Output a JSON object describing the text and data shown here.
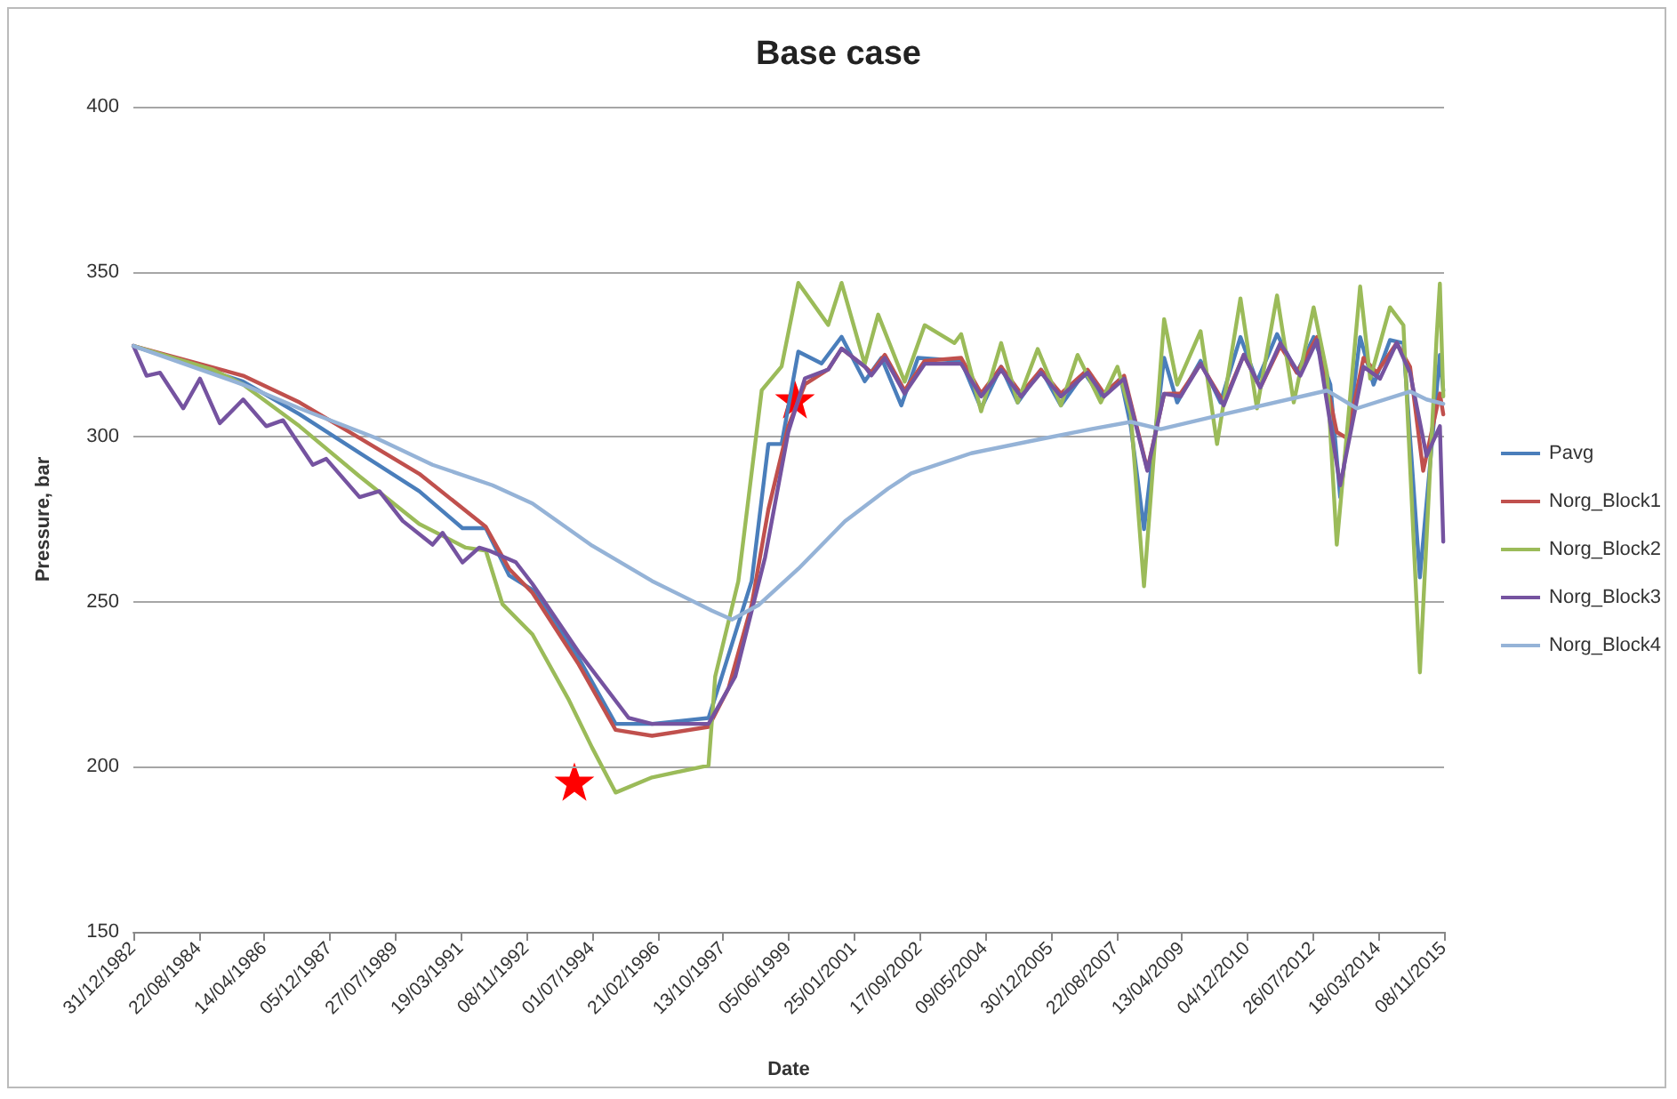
{
  "chart_data": {
    "type": "line",
    "title": "Base case",
    "xlabel": "Date",
    "ylabel": "Pressure, bar",
    "ylim": [
      150,
      400
    ],
    "yticks": [
      150,
      200,
      250,
      300,
      350,
      400
    ],
    "xlim": [
      "1982-12-31",
      "2015-11-08"
    ],
    "xticks": [
      {
        "value": "1982-12-31",
        "label": "31/12/1982"
      },
      {
        "value": "1984-08-22",
        "label": "22/08/1984"
      },
      {
        "value": "1986-04-14",
        "label": "14/04/1986"
      },
      {
        "value": "1987-12-05",
        "label": "05/12/1987"
      },
      {
        "value": "1989-07-27",
        "label": "27/07/1989"
      },
      {
        "value": "1991-03-19",
        "label": "19/03/1991"
      },
      {
        "value": "1992-11-08",
        "label": "08/11/1992"
      },
      {
        "value": "1994-07-01",
        "label": "01/07/1994"
      },
      {
        "value": "1996-02-21",
        "label": "21/02/1996"
      },
      {
        "value": "1997-10-13",
        "label": "13/10/1997"
      },
      {
        "value": "1999-06-05",
        "label": "05/06/1999"
      },
      {
        "value": "2001-01-25",
        "label": "25/01/2001"
      },
      {
        "value": "2002-09-17",
        "label": "17/09/2002"
      },
      {
        "value": "2004-05-09",
        "label": "09/05/2004"
      },
      {
        "value": "2005-12-30",
        "label": "30/12/2005"
      },
      {
        "value": "2007-08-22",
        "label": "22/08/2007"
      },
      {
        "value": "2009-04-13",
        "label": "13/04/2009"
      },
      {
        "value": "2010-12-04",
        "label": "04/12/2010"
      },
      {
        "value": "2012-07-26",
        "label": "26/07/2012"
      },
      {
        "value": "2014-03-18",
        "label": "18/03/2014"
      },
      {
        "value": "2015-11-08",
        "label": "08/11/2015"
      }
    ],
    "grid": "y",
    "legend": "right",
    "marker": "none",
    "line_style": "solid",
    "series": [
      {
        "name": "Pavg",
        "color": "#4a7ebb",
        "x": [
          "1983-01",
          "1985-10",
          "1987-03",
          "1988-09",
          "1990-03",
          "1991-04",
          "1991-11",
          "1992-06",
          "1993-01",
          "1994-03",
          "1995-02",
          "1996-01",
          "1997-06",
          "1997-10",
          "1998-07",
          "1998-12",
          "1999-04",
          "1999-09",
          "2000-04",
          "2000-10",
          "2001-05",
          "2001-10",
          "2002-04",
          "2002-09",
          "2003-10",
          "2004-04",
          "2004-10",
          "2005-03",
          "2005-10",
          "2006-04",
          "2006-11",
          "2007-04",
          "2007-10",
          "2008-01",
          "2008-05",
          "2008-11",
          "2009-03",
          "2009-10",
          "2010-04",
          "2010-10",
          "2011-03",
          "2011-09",
          "2012-03",
          "2012-08",
          "2013-01",
          "2013-04",
          "2013-10",
          "2014-02",
          "2014-07",
          "2014-11",
          "2015-04",
          "2015-10",
          "2015-11"
        ],
        "values": [
          327.5,
          316.7,
          306.8,
          295.1,
          283.5,
          272.3,
          272.3,
          258,
          253.6,
          232.9,
          213,
          213,
          214.8,
          227.4,
          256.3,
          297.8,
          297.8,
          325.8,
          322.2,
          330.3,
          316.8,
          323.9,
          309.5,
          323.9,
          323,
          308.6,
          321.2,
          310.4,
          320.3,
          309.5,
          319.4,
          312.2,
          317.6,
          303.2,
          272,
          323.9,
          310.4,
          323,
          310.4,
          330.2,
          316.7,
          331.1,
          319.4,
          330.2,
          315.8,
          281.7,
          330.2,
          315.8,
          329.3,
          328.4,
          257.4,
          324.8,
          314
        ]
      },
      {
        "name": "Norg_Block1",
        "color": "#c0504d",
        "x": [
          "1983-01",
          "1985-10",
          "1987-03",
          "1988-09",
          "1990-03",
          "1991-11",
          "1992-06",
          "1993-01",
          "1994-03",
          "1995-02",
          "1996-01",
          "1997-06",
          "1997-12",
          "1998-07",
          "1998-12",
          "1999-06",
          "1999-11",
          "2000-06",
          "2000-10",
          "2001-05",
          "2001-07",
          "2001-11",
          "2002-05",
          "2002-11",
          "2003-10",
          "2004-04",
          "2004-10",
          "2005-04",
          "2005-10",
          "2006-04",
          "2006-12",
          "2007-05",
          "2007-11",
          "2008-06",
          "2008-11",
          "2009-04",
          "2009-10",
          "2010-05",
          "2010-11",
          "2011-04",
          "2011-10",
          "2012-03",
          "2012-09",
          "2013-03",
          "2013-06",
          "2013-11",
          "2014-03",
          "2014-09",
          "2015-01",
          "2015-05",
          "2015-10",
          "2015-11"
        ],
        "values": [
          327.5,
          318.5,
          310.4,
          299.6,
          288.8,
          272.7,
          260,
          252.7,
          231,
          211.2,
          209.4,
          212.1,
          223.8,
          249.1,
          278,
          303.2,
          315.9,
          320.4,
          326.7,
          321.3,
          319.4,
          324.8,
          314,
          323,
          323.9,
          313.1,
          321.2,
          313.1,
          320.3,
          313.1,
          320.3,
          313.1,
          318.5,
          290,
          313,
          313.1,
          322.1,
          310.4,
          324.8,
          314.9,
          327.5,
          319.4,
          330.2,
          301.4,
          299.6,
          323.9,
          319.4,
          328.4,
          321.2,
          289.7,
          313.1,
          306.8
        ]
      },
      {
        "name": "Norg_Block2",
        "color": "#9bbb59",
        "x": [
          "1983-01",
          "1985-01",
          "1985-10",
          "1987-03",
          "1988-09",
          "1990-03",
          "1991-05",
          "1991-11",
          "1992-04",
          "1993-01",
          "1993-12",
          "1994-07",
          "1995-02",
          "1996-01",
          "1997-06",
          "1997-08",
          "1998-03",
          "1998-10",
          "1999-04",
          "1999-09",
          "2000-06",
          "2000-10",
          "2001-05",
          "2001-09",
          "2002-05",
          "2002-11",
          "2003-08",
          "2003-10",
          "2004-04",
          "2004-10",
          "2005-03",
          "2005-09",
          "2006-04",
          "2006-09",
          "2007-04",
          "2007-09",
          "2008-01",
          "2008-05",
          "2008-11",
          "2009-03",
          "2009-10",
          "2010-03",
          "2010-10",
          "2011-03",
          "2011-09",
          "2012-02",
          "2012-08",
          "2012-12",
          "2013-03",
          "2013-10",
          "2014-01",
          "2014-07",
          "2014-11",
          "2015-04",
          "2015-09",
          "2015-10",
          "2015-11"
        ],
        "values": [
          327.5,
          320.3,
          315.8,
          303.2,
          288,
          273.6,
          266.4,
          265.5,
          249.3,
          240.1,
          220.2,
          205.8,
          192.2,
          196.8,
          200.4,
          227.4,
          256.3,
          314.1,
          321.3,
          346.6,
          333.9,
          346.6,
          322,
          337,
          316.7,
          333.8,
          328.4,
          331.1,
          307.7,
          328.4,
          310.4,
          326.6,
          309.5,
          324.8,
          310.4,
          321.2,
          306.8,
          254.7,
          335.6,
          315.8,
          332,
          297.8,
          341.9,
          308.6,
          342.8,
          310.4,
          339.2,
          319.4,
          267.3,
          345.5,
          317.6,
          339.2,
          333.8,
          228.6,
          330.2,
          346.4,
          312.2
        ]
      },
      {
        "name": "Norg_Block3",
        "color": "#7553a0",
        "x": [
          "1983-01",
          "1983-05",
          "1983-09",
          "1984-04",
          "1984-09",
          "1985-03",
          "1985-10",
          "1986-05",
          "1986-10",
          "1987-07",
          "1987-11",
          "1988-09",
          "1989-03",
          "1989-10",
          "1990-07",
          "1990-10",
          "1991-04",
          "1991-09",
          "1991-12",
          "1992-08",
          "1993-01",
          "1994-03",
          "1995-06",
          "1996-01",
          "1997-06",
          "1998-02",
          "1998-11",
          "1999-06",
          "1999-11",
          "2000-06",
          "2000-10",
          "2001-05",
          "2001-07",
          "2001-11",
          "2002-05",
          "2002-11",
          "2003-10",
          "2004-04",
          "2004-10",
          "2005-04",
          "2005-10",
          "2006-04",
          "2006-12",
          "2007-05",
          "2007-11",
          "2008-06",
          "2008-11",
          "2009-04",
          "2009-10",
          "2010-05",
          "2010-11",
          "2011-04",
          "2011-10",
          "2012-04",
          "2012-09",
          "2013-04",
          "2013-11",
          "2014-04",
          "2014-09",
          "2015-01",
          "2015-06",
          "2015-10",
          "2015-11"
        ],
        "values": [
          327.5,
          318.5,
          319.4,
          308.6,
          317.6,
          304.1,
          311.3,
          303.2,
          305,
          291.5,
          293.3,
          281.7,
          283.5,
          274.5,
          267.3,
          270.9,
          261.9,
          266.4,
          265.5,
          262,
          255.4,
          234.7,
          214.8,
          213,
          213,
          227.4,
          263.5,
          301.4,
          317.7,
          320.4,
          326.7,
          321.3,
          318.6,
          323.9,
          313.1,
          322.1,
          322.1,
          312.2,
          320.3,
          312.2,
          319.4,
          312.2,
          319.4,
          312.2,
          317.6,
          289.7,
          313,
          312.2,
          322.1,
          309.5,
          324.8,
          314.9,
          328.4,
          318.5,
          329.3,
          285.3,
          321.2,
          317.6,
          328.4,
          319.4,
          294.2,
          303.2,
          268.2
        ]
      },
      {
        "name": "Norg_Block4",
        "color": "#95b3d7",
        "x": [
          "1983-01",
          "1985-10",
          "1987-03",
          "1989-02",
          "1990-07",
          "1992-01",
          "1993-01",
          "1994-07",
          "1996-01",
          "1997-07",
          "1998-01",
          "1998-09",
          "1999-09",
          "2000-11",
          "2001-12",
          "2002-07",
          "2004-01",
          "2005-07",
          "2007-01",
          "2008-01",
          "2008-10",
          "2010-05",
          "2012-12",
          "2013-09",
          "2015-01",
          "2015-06",
          "2015-11"
        ],
        "values": [
          327.5,
          315.8,
          308.6,
          299.6,
          291.5,
          285.3,
          279.8,
          267,
          256.3,
          247.3,
          244.6,
          249,
          260,
          274.4,
          284.3,
          288.9,
          295,
          298.7,
          302.3,
          304.5,
          302.3,
          306.8,
          314,
          308.6,
          313.7,
          311.3,
          310
        ]
      }
    ]
  }
}
